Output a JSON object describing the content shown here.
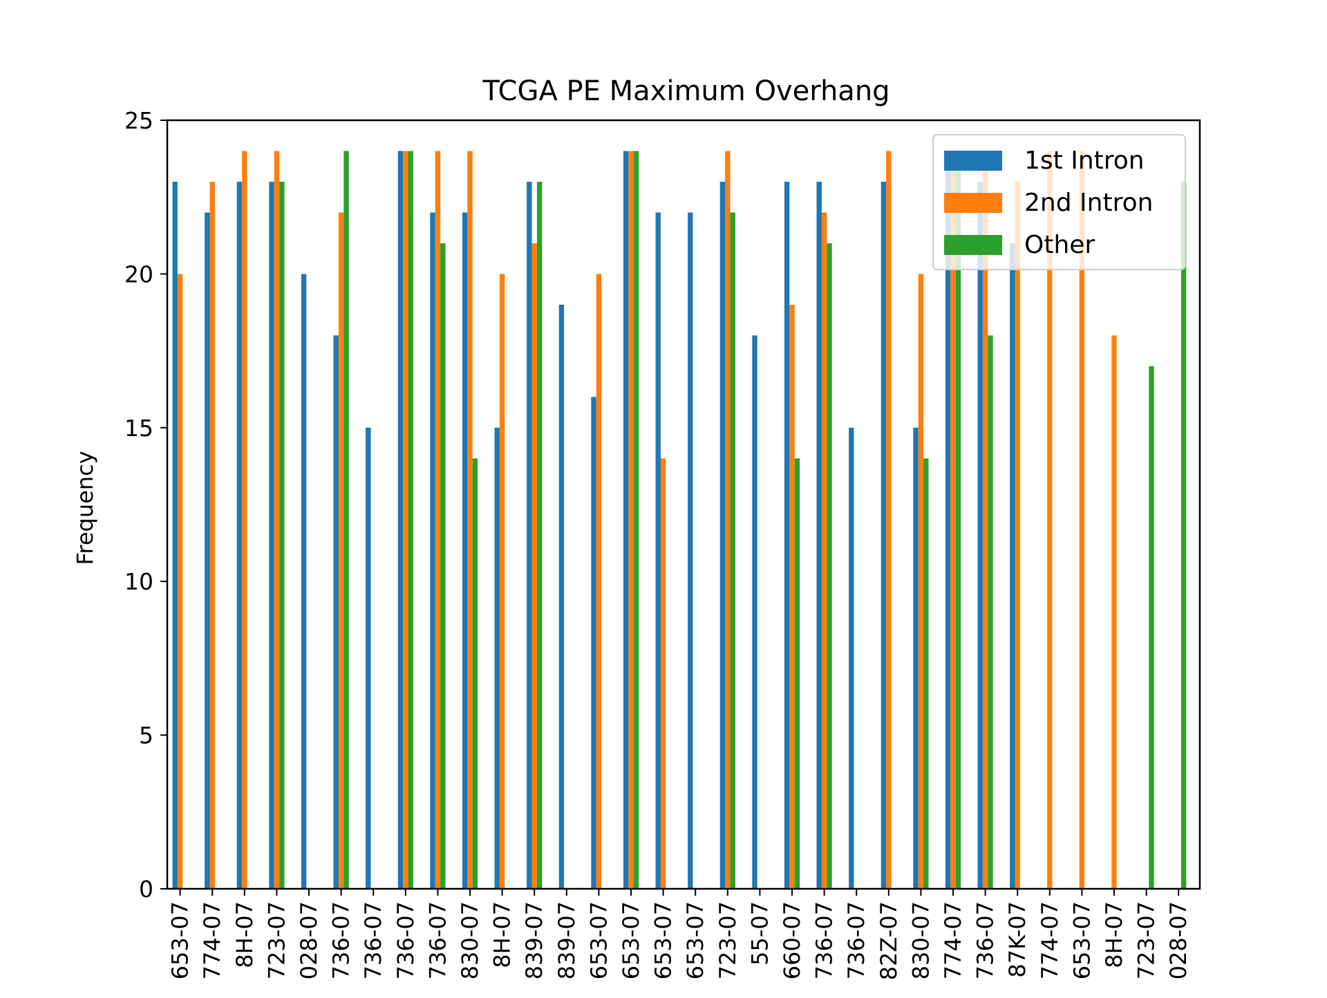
{
  "chart_data": {
    "type": "bar",
    "title": "TCGA PE Maximum Overhang",
    "xlabel": "",
    "ylabel": "Frequency",
    "ylim": [
      0,
      25
    ],
    "yticks": [
      0,
      5,
      10,
      15,
      20,
      25
    ],
    "grid": false,
    "legend_position": "upper right",
    "categories": [
      "653-07",
      "774-07",
      "8H-07",
      "723-07",
      "028-07",
      "736-07",
      "736-07",
      "736-07",
      "736-07",
      "830-07",
      "8H-07",
      "839-07",
      "839-07",
      "653-07",
      "653-07",
      "653-07",
      "653-07",
      "723-07",
      "55-07",
      "660-07",
      "736-07",
      "736-07",
      "82Z-07",
      "830-07",
      "774-07",
      "736-07",
      "87K-07",
      "774-07",
      "653-07",
      "8H-07",
      "723-07",
      "028-07"
    ],
    "series": [
      {
        "name": "1st Intron",
        "color": "#1f77b4",
        "values": [
          23,
          22,
          23,
          23,
          20,
          18,
          15,
          24,
          22,
          22,
          15,
          23,
          19,
          16,
          24,
          22,
          22,
          23,
          18,
          23,
          23,
          15,
          23,
          15,
          24,
          23,
          21,
          0,
          0,
          0,
          0,
          0
        ]
      },
      {
        "name": "2nd Intron",
        "color": "#ff7f0e",
        "values": [
          20,
          23,
          24,
          24,
          0,
          22,
          0,
          24,
          24,
          24,
          20,
          21,
          0,
          20,
          24,
          14,
          0,
          24,
          0,
          19,
          22,
          0,
          24,
          20,
          24,
          24,
          23,
          24,
          24,
          18,
          0,
          0
        ]
      },
      {
        "name": "Other",
        "color": "#2ca02c",
        "values": [
          0,
          0,
          0,
          23,
          0,
          24,
          0,
          24,
          21,
          14,
          0,
          23,
          0,
          0,
          24,
          0,
          0,
          22,
          0,
          14,
          21,
          0,
          0,
          14,
          24,
          18,
          0,
          0,
          0,
          0,
          17,
          23
        ]
      }
    ]
  }
}
